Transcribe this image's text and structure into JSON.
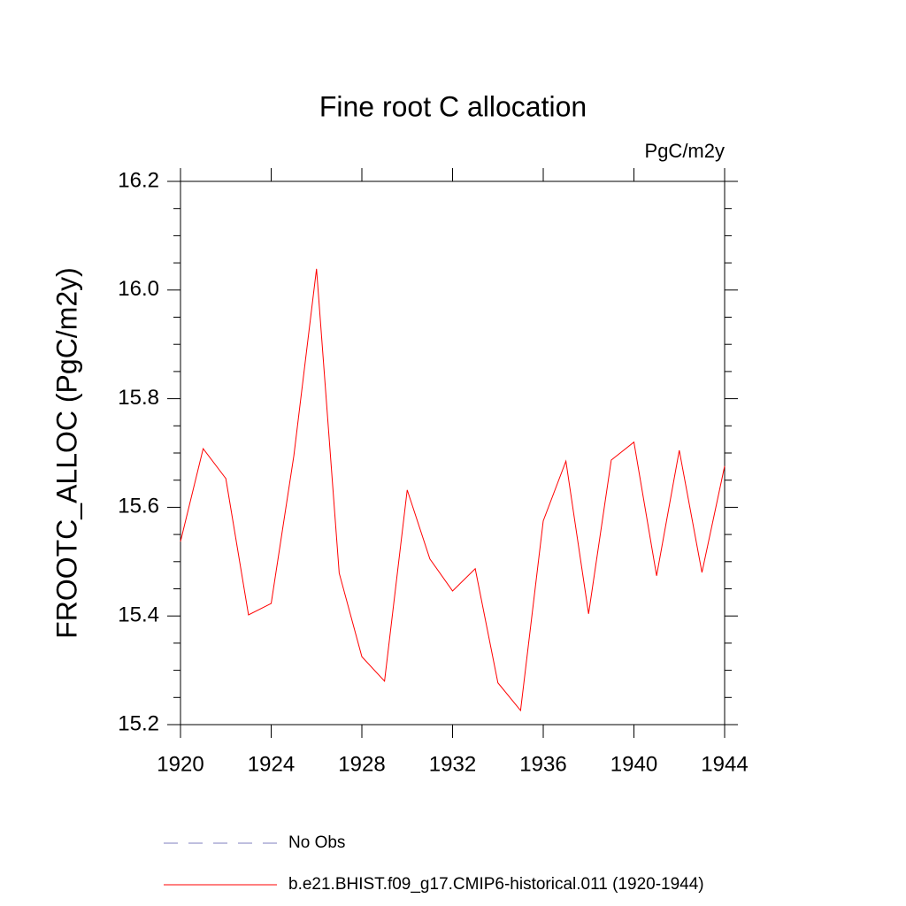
{
  "chart_data": {
    "type": "line",
    "title": "Fine root C allocation",
    "units_label": "PgC/m2y",
    "y_label": "FROOTC_ALLOC  (PgC/m2y)",
    "x": [
      1920,
      1921,
      1922,
      1923,
      1924,
      1925,
      1926,
      1927,
      1928,
      1929,
      1930,
      1931,
      1932,
      1933,
      1934,
      1935,
      1936,
      1937,
      1938,
      1939,
      1940,
      1941,
      1942,
      1943,
      1944
    ],
    "series": [
      {
        "name": "b.e21.BHIST.f09_g17.CMIP6-historical.011 (1920-1944)",
        "color": "#ff0000",
        "values": [
          15.537,
          15.708,
          15.653,
          15.402,
          15.423,
          15.695,
          16.039,
          15.479,
          15.325,
          15.28,
          15.632,
          15.505,
          15.446,
          15.487,
          15.277,
          15.226,
          15.575,
          15.685,
          15.404,
          15.687,
          15.72,
          15.474,
          15.705,
          15.48,
          15.676
        ]
      }
    ],
    "legend_entries": [
      {
        "name": "No Obs",
        "color": "#7f7fbf",
        "style": "dashed"
      }
    ],
    "xlim": [
      1920,
      1944
    ],
    "xticks": [
      1920,
      1924,
      1928,
      1932,
      1936,
      1940,
      1944
    ],
    "ylim": [
      15.2,
      16.2
    ],
    "yticks": [
      15.2,
      15.4,
      15.6,
      15.8,
      {
        "value": 16,
        "label": "16.0"
      },
      16.2
    ],
    "grid": false
  }
}
